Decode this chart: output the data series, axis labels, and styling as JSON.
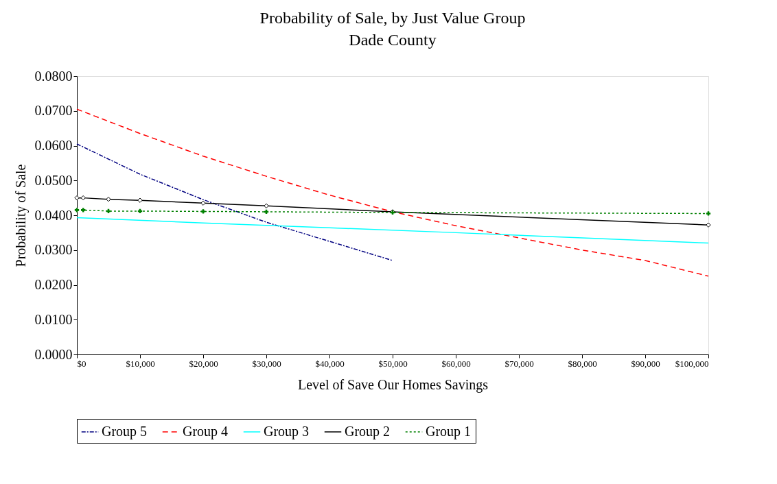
{
  "chart_data": {
    "type": "line",
    "title": "Probability of Sale, by Just Value Group",
    "subtitle": "Dade County",
    "xlabel": "Level of Save Our Homes Savings",
    "ylabel": "Probability of Sale",
    "xlim": [
      0,
      100000
    ],
    "ylim": [
      0,
      0.08
    ],
    "xticks": [
      {
        "value": 0,
        "label": "$0"
      },
      {
        "value": 10000,
        "label": "$10,000"
      },
      {
        "value": 20000,
        "label": "$20,000"
      },
      {
        "value": 30000,
        "label": "$30,000"
      },
      {
        "value": 40000,
        "label": "$40,000"
      },
      {
        "value": 50000,
        "label": "$50,000"
      },
      {
        "value": 60000,
        "label": "$60,000"
      },
      {
        "value": 70000,
        "label": "$70,000"
      },
      {
        "value": 80000,
        "label": "$80,000"
      },
      {
        "value": 90000,
        "label": "$90,000"
      },
      {
        "value": 100000,
        "label": "$100,000"
      }
    ],
    "yticks": [
      {
        "value": 0,
        "label": "0.0000"
      },
      {
        "value": 0.01,
        "label": "0.0100"
      },
      {
        "value": 0.02,
        "label": "0.0200"
      },
      {
        "value": 0.03,
        "label": "0.0300"
      },
      {
        "value": 0.04,
        "label": "0.0400"
      },
      {
        "value": 0.05,
        "label": "0.0500"
      },
      {
        "value": 0.06,
        "label": "0.0600"
      },
      {
        "value": 0.07,
        "label": "0.0700"
      },
      {
        "value": 0.08,
        "label": "0.0800"
      }
    ],
    "grid": false,
    "legend": "bottom",
    "series": [
      {
        "name": "Group 5",
        "color": "#000080",
        "line_style": "dashdot",
        "marker": "none",
        "x": [
          0,
          10000,
          20000,
          30000,
          40000,
          50000
        ],
        "values": [
          0.0605,
          0.0518,
          0.0445,
          0.038,
          0.0325,
          0.027
        ]
      },
      {
        "name": "Group 4",
        "color": "#ff0000",
        "line_style": "dashed",
        "marker": "none",
        "x": [
          0,
          10000,
          20000,
          30000,
          40000,
          50000,
          60000,
          70000,
          80000,
          90000,
          100000
        ],
        "values": [
          0.0705,
          0.0635,
          0.057,
          0.0512,
          0.0458,
          0.041,
          0.037,
          0.0335,
          0.03,
          0.027,
          0.0225
        ]
      },
      {
        "name": "Group 3",
        "color": "#00ffff",
        "line_style": "solid",
        "marker": "none",
        "x": [
          0,
          20000,
          40000,
          60000,
          80000,
          100000
        ],
        "values": [
          0.0393,
          0.0378,
          0.0364,
          0.035,
          0.0335,
          0.032
        ]
      },
      {
        "name": "Group 2",
        "color": "#000000",
        "line_style": "solid",
        "marker": "diamond",
        "x": [
          0,
          1000,
          5000,
          10000,
          20000,
          30000,
          50000,
          100000
        ],
        "values": [
          0.045,
          0.045,
          0.0446,
          0.0443,
          0.0435,
          0.0427,
          0.041,
          0.0372
        ]
      },
      {
        "name": "Group 1",
        "color": "#008000",
        "line_style": "dotted",
        "marker": "cross",
        "x": [
          0,
          1000,
          5000,
          10000,
          20000,
          30000,
          50000,
          100000
        ],
        "values": [
          0.0415,
          0.0415,
          0.0412,
          0.0412,
          0.0411,
          0.041,
          0.0408,
          0.0405
        ]
      }
    ]
  }
}
